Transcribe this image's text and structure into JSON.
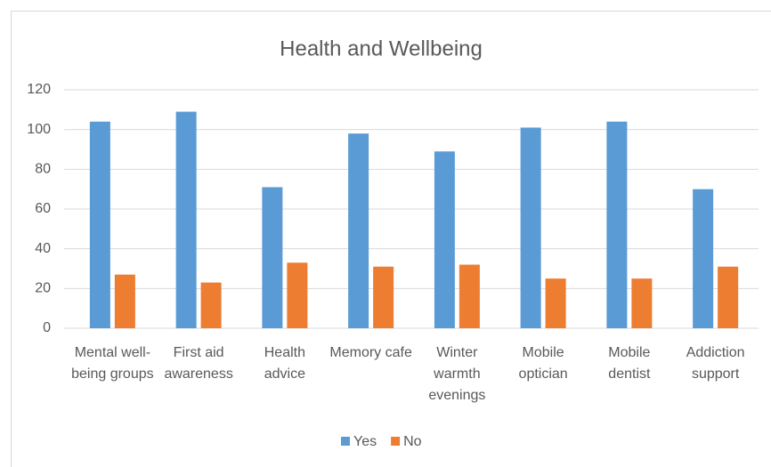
{
  "chart_data": {
    "type": "bar",
    "title": "Health and Wellbeing",
    "categories": [
      "Mental well-being groups",
      "First aid awareness",
      "Health advice",
      "Memory cafe",
      "Winter warmth evenings",
      "Mobile optician",
      "Mobile dentist",
      "Addiction support"
    ],
    "series": [
      {
        "name": "Yes",
        "color": "#5b9bd5",
        "values": [
          104,
          109,
          71,
          98,
          89,
          101,
          104,
          70
        ]
      },
      {
        "name": "No",
        "color": "#ed7d31",
        "values": [
          27,
          23,
          33,
          31,
          32,
          25,
          25,
          31
        ]
      }
    ],
    "ylim": [
      0,
      120
    ],
    "yticks": [
      0,
      20,
      40,
      60,
      80,
      100,
      120
    ],
    "grid": true,
    "legend": "bottom"
  }
}
